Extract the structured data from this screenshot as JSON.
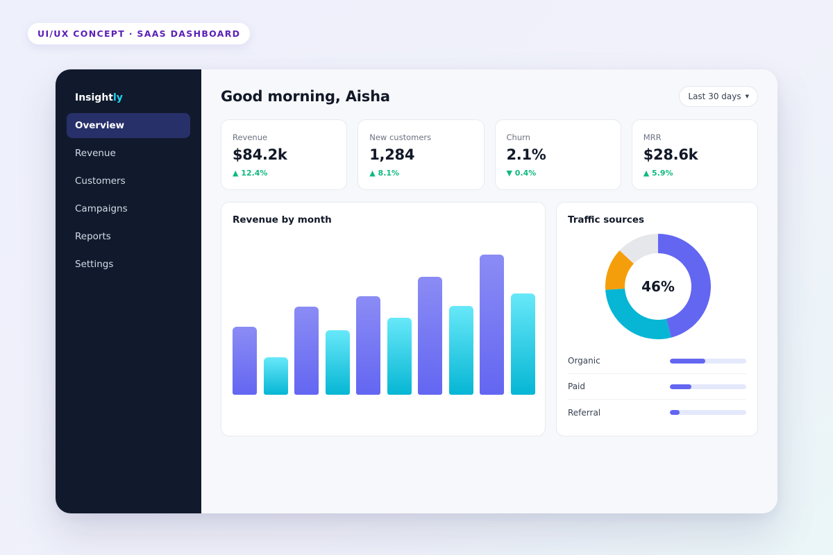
{
  "tag": "UI/UX CONCEPT · SAAS DASHBOARD",
  "logo": {
    "prefix": "Insight",
    "accent": "ly"
  },
  "sidebar": {
    "items": [
      {
        "label": "Overview",
        "active": true
      },
      {
        "label": "Revenue"
      },
      {
        "label": "Customers"
      },
      {
        "label": "Campaigns"
      },
      {
        "label": "Reports"
      },
      {
        "label": "Settings"
      }
    ]
  },
  "header": {
    "greeting": "Good morning, Aisha",
    "range_label": "Last 30 days",
    "range_icon": "caret-down-icon"
  },
  "stats": [
    {
      "label": "Revenue",
      "value": "$84.2k",
      "delta": "▲ 12.4%"
    },
    {
      "label": "New customers",
      "value": "1,284",
      "delta": "▲ 8.1%"
    },
    {
      "label": "Churn",
      "value": "2.1%",
      "delta": "▼ 0.4%"
    },
    {
      "label": "MRR",
      "value": "$28.6k",
      "delta": "▲ 5.9%"
    }
  ],
  "revenue_chart": {
    "title": "Revenue by month"
  },
  "traffic": {
    "title": "Traffic sources",
    "center_label": "46%",
    "sources": [
      {
        "label": "Organic",
        "share": 0.46
      },
      {
        "label": "Paid",
        "share": 0.28
      },
      {
        "label": "Referral",
        "share": 0.13
      }
    ]
  },
  "colors": {
    "accent": "#6366f1",
    "cyan": "#06b6d4",
    "amber": "#f59e0b",
    "track": "#e5e7eb",
    "positive": "#10b981",
    "sidebar_bg": "#111a2d"
  },
  "chart_data": [
    {
      "type": "bar",
      "title": "Revenue by month",
      "values": [
        56,
        31,
        72,
        53,
        81,
        63,
        97,
        73,
        115,
        83
      ],
      "colors": [
        "purple",
        "cyan",
        "purple",
        "cyan",
        "purple",
        "cyan",
        "purple",
        "cyan",
        "purple",
        "cyan"
      ],
      "ylim": [
        0,
        128
      ],
      "grid": false
    },
    {
      "type": "pie",
      "title": "Traffic sources",
      "slices": [
        {
          "value": 46,
          "color": "#6366f1"
        },
        {
          "value": 28,
          "color": "#06b6d4"
        },
        {
          "value": 13,
          "color": "#f59e0b"
        },
        {
          "value": 13,
          "color": "#e5e7eb"
        }
      ]
    }
  ]
}
